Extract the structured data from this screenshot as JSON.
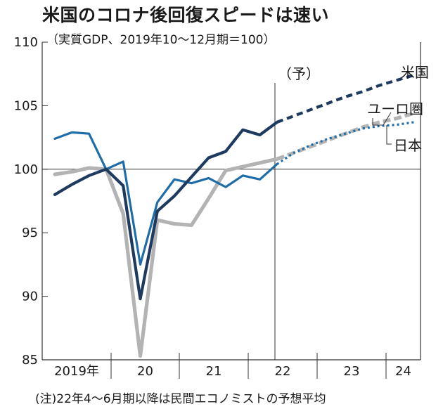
{
  "title": "米国のコロナ後回復スピードは速い",
  "subtitle": "（実質GDP、2019年10〜12月期＝100）",
  "note": "(注)22年4〜6月期以降は民間エコノミストの予想平均",
  "forecast_label": "（予）",
  "colors": {
    "us": "#1f3a5f",
    "eurozone": "#b3b3b3",
    "japan": "#1f6da8",
    "axis": "#333333"
  },
  "chart_data": {
    "type": "line",
    "title": "米国のコロナ後回復スピードは速い",
    "subtitle": "（実質GDP、2019年10〜12月期＝100）",
    "x": [
      "2019Q1",
      "2019Q2",
      "2019Q3",
      "2019Q4",
      "2020Q1",
      "2020Q2",
      "2020Q3",
      "2020Q4",
      "2021Q1",
      "2021Q2",
      "2021Q3",
      "2021Q4",
      "2022Q1",
      "2022Q2",
      "2022Q3",
      "2022Q4",
      "2023Q1",
      "2023Q2",
      "2023Q3",
      "2023Q4",
      "2024Q1",
      "2024Q2"
    ],
    "x_tick_labels": [
      "2019年",
      "20",
      "21",
      "22",
      "23",
      "24"
    ],
    "ylim": [
      85,
      110
    ],
    "yticks": [
      85,
      90,
      95,
      100,
      105,
      110
    ],
    "reference_line": 100,
    "forecast_start": "2022Q2",
    "series": [
      {
        "name": "米国",
        "values": [
          98.0,
          98.8,
          99.5,
          100.0,
          98.7,
          89.8,
          96.7,
          97.9,
          99.4,
          100.9,
          101.4,
          103.1,
          102.7,
          103.7,
          104.2,
          104.7,
          105.2,
          105.7,
          106.1,
          106.6,
          107.0,
          107.4
        ],
        "forecast_from_index": 13
      },
      {
        "name": "ユーロ圏",
        "values": [
          99.6,
          99.8,
          100.1,
          100.0,
          96.5,
          85.3,
          96.0,
          95.7,
          95.6,
          97.7,
          99.9,
          100.2,
          100.5,
          100.8,
          101.3,
          101.8,
          102.3,
          102.8,
          103.3,
          103.7,
          104.0,
          104.4
        ],
        "forecast_from_index": 13
      },
      {
        "name": "日本",
        "values": [
          102.4,
          102.9,
          102.8,
          100.0,
          100.6,
          92.5,
          97.4,
          99.2,
          98.9,
          99.3,
          98.6,
          99.5,
          99.2,
          100.4,
          101.3,
          101.9,
          102.4,
          102.8,
          103.2,
          103.4,
          103.5,
          103.7
        ],
        "forecast_from_index": 13
      }
    ],
    "legend": "series labels at right end of lines"
  }
}
